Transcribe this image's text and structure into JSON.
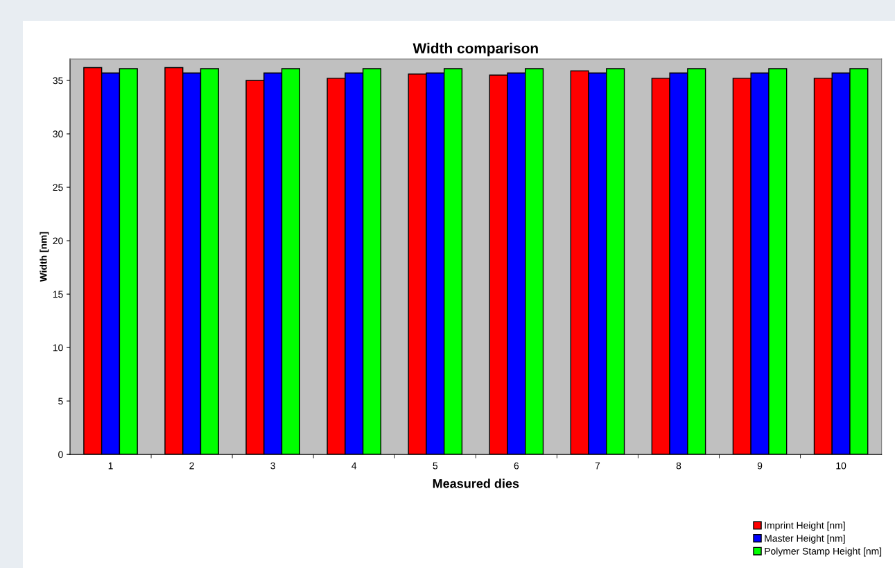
{
  "chart_data": {
    "type": "bar",
    "title": "Width comparison",
    "xlabel": "Measured dies",
    "ylabel": "Width [nm]",
    "categories": [
      "1",
      "2",
      "3",
      "4",
      "5",
      "6",
      "7",
      "8",
      "9",
      "10"
    ],
    "series": [
      {
        "name": "Imprint Height [nm]",
        "color": "#ff0000",
        "values": [
          36.2,
          36.2,
          35.0,
          35.2,
          35.6,
          35.5,
          35.9,
          35.2,
          35.2,
          35.2
        ]
      },
      {
        "name": "Master Height [nm]",
        "color": "#0000ff",
        "values": [
          35.7,
          35.7,
          35.7,
          35.7,
          35.7,
          35.7,
          35.7,
          35.7,
          35.7,
          35.7
        ]
      },
      {
        "name": "Polymer Stamp Height [nm]",
        "color": "#00ff00",
        "values": [
          36.1,
          36.1,
          36.1,
          36.1,
          36.1,
          36.1,
          36.1,
          36.1,
          36.1,
          36.1
        ]
      }
    ],
    "ylim": [
      0,
      37
    ],
    "yticks": [
      0,
      5,
      10,
      15,
      20,
      25,
      30,
      35
    ],
    "grid": false,
    "legend": "bottom right"
  }
}
